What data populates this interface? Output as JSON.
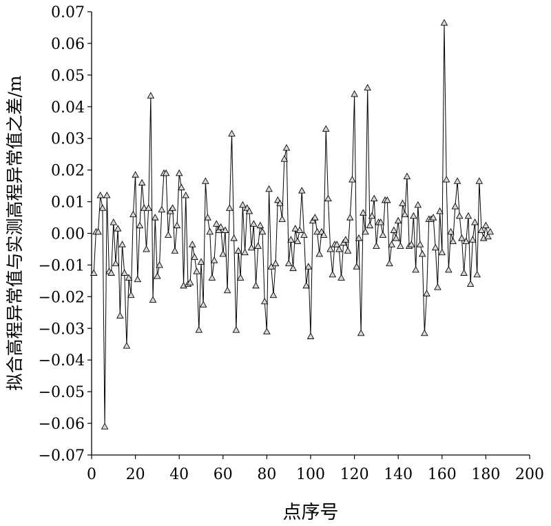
{
  "chart_data": {
    "type": "line",
    "marker": "triangle",
    "xlabel": "点序号",
    "ylabel": "拟合高程异常值与实测高程异常值之差/m",
    "xlim": [
      0,
      200
    ],
    "ylim": [
      -0.07,
      0.07
    ],
    "xticks": [
      "0",
      "20",
      "40",
      "60",
      "80",
      "100",
      "120",
      "140",
      "160",
      "180",
      "200"
    ],
    "yticks": [
      "0.07",
      "0.06",
      "0.05",
      "0.04",
      "0.03",
      "0.02",
      "0.01",
      "0.00",
      "−0.01",
      "−0.02",
      "−0.03",
      "−0.04",
      "−0.05",
      "−0.06",
      "−0.07"
    ],
    "grid": false,
    "series": [
      {
        "values": [
          -0.0125,
          0.0005,
          0.0005,
          0.012,
          0.008,
          -0.061,
          0.012,
          -0.012,
          -0.0125,
          0.0035,
          -0.0095,
          0.0015,
          -0.026,
          -0.0035,
          -0.0125,
          -0.0355,
          -0.014,
          -0.0195,
          0.006,
          0.0185,
          -0.0145,
          0.0025,
          0.016,
          0.008,
          -0.005,
          0.008,
          0.0435,
          -0.021,
          0.005,
          -0.0135,
          -0.01,
          0.0075,
          0.019,
          0.019,
          -0.0005,
          0.007,
          0.008,
          -0.0055,
          0.0025,
          0.019,
          0.0145,
          -0.0165,
          0.012,
          -0.016,
          -0.0155,
          -0.0035,
          -0.0075,
          -0.012,
          -0.0305,
          -0.009,
          -0.0225,
          0.0165,
          0.005,
          0.0005,
          -0.014,
          -0.0085,
          0.003,
          0.001,
          0.002,
          -0.0065,
          0.001,
          -0.018,
          0.008,
          0.0315,
          -0.0015,
          -0.0305,
          -0.0055,
          -0.014,
          0.009,
          -0.006,
          0.008,
          0.007,
          -0.0045,
          0.003,
          -0.0165,
          -0.004,
          0.0025,
          0.0005,
          -0.0215,
          -0.031,
          0.014,
          -0.0105,
          -0.0195,
          -0.0095,
          0.0105,
          0.0095,
          0.0045,
          0.0235,
          0.027,
          -0.0095,
          -0.002,
          -0.011,
          0.0015,
          -0.0025,
          0.001,
          0.0135,
          -0.0005,
          -0.0165,
          -0.0105,
          -0.0325,
          0.004,
          0.005,
          0.0005,
          -0.0065,
          0.0005,
          -0.0005,
          0.033,
          0.011,
          -0.005,
          -0.013,
          -0.0035,
          -0.0035,
          -0.005,
          -0.014,
          -0.003,
          -0.002,
          -0.0055,
          0.005,
          0.017,
          0.044,
          -0.0105,
          -0.0015,
          -0.0315,
          0.0065,
          0.0005,
          0.046,
          0.0025,
          0.0055,
          0.011,
          -0.004,
          0.0035,
          0.0035,
          -0.0005,
          0.0105,
          0.0105,
          -0.0095,
          -0.0035,
          0.001,
          -0.0015,
          0.004,
          -0.004,
          0.0095,
          0.006,
          0.018,
          -0.004,
          -0.0035,
          0.0055,
          -0.0115,
          0.009,
          -0.0035,
          -0.0065,
          -0.0315,
          -0.019,
          0.0045,
          0.0045,
          0.005,
          -0.0045,
          -0.017,
          0.007,
          -0.006,
          0.0665,
          0.017,
          -0.0115,
          0.0005,
          -0.0025,
          0.0085,
          0.0165,
          0.0055,
          -0.0015,
          -0.0125,
          -0.0025,
          0.0055,
          -0.016,
          -0.002,
          0.0035,
          -0.013,
          0.0165,
          0.001,
          -0.0015,
          0.0025,
          -0.001,
          0.0005
        ]
      }
    ]
  }
}
